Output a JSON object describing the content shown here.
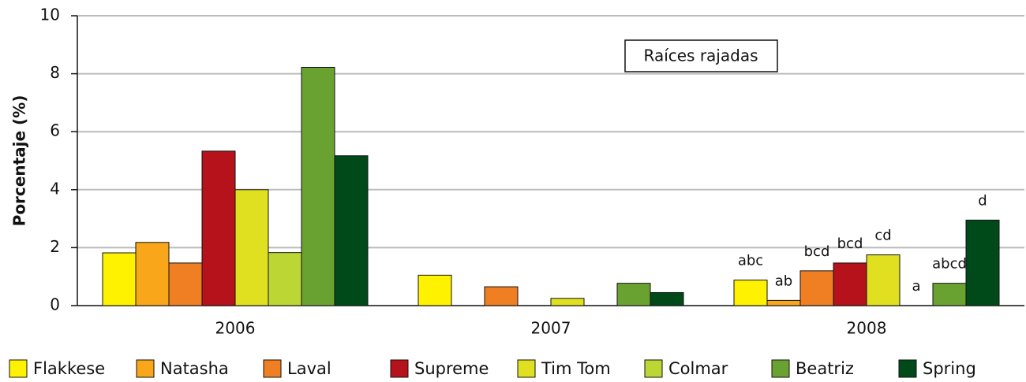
{
  "chart_data": {
    "type": "bar",
    "title": "Raíces rajadas",
    "y_label": "Porcentaje (%)",
    "categories": [
      "2006",
      "2007",
      "2008"
    ],
    "ylim": [
      0,
      10
    ],
    "yticks": [
      0,
      2,
      4,
      6,
      8,
      10
    ],
    "grid": true,
    "legend": "bottom",
    "series": [
      {
        "name": "Flakkese",
        "color": "#fff200",
        "values": [
          1.82,
          1.05,
          0.88
        ],
        "annotations": [
          null,
          null,
          "abc"
        ]
      },
      {
        "name": "Natasha",
        "color": "#f9a61a",
        "values": [
          2.18,
          null,
          0.18
        ],
        "annotations": [
          null,
          null,
          "ab"
        ]
      },
      {
        "name": "Laval",
        "color": "#f07f24",
        "values": [
          1.47,
          0.65,
          1.2
        ],
        "annotations": [
          null,
          null,
          "bcd"
        ]
      },
      {
        "name": "Supreme",
        "color": "#b5121b",
        "values": [
          5.33,
          null,
          1.47
        ],
        "annotations": [
          null,
          null,
          "bcd"
        ]
      },
      {
        "name": "Tim Tom",
        "color": "#e0e020",
        "values": [
          4.0,
          0.25,
          1.75
        ],
        "annotations": [
          null,
          null,
          "cd"
        ]
      },
      {
        "name": "Colmar",
        "color": "#bcd634",
        "values": [
          1.83,
          null,
          null
        ],
        "annotations": [
          null,
          null,
          "a"
        ]
      },
      {
        "name": "Beatriz",
        "color": "#6aa232",
        "values": [
          8.22,
          0.77,
          0.77
        ],
        "annotations": [
          null,
          null,
          "abcd"
        ]
      },
      {
        "name": "Spring",
        "color": "#004a1a",
        "values": [
          5.17,
          0.45,
          2.95
        ],
        "annotations": [
          null,
          null,
          "d"
        ]
      }
    ]
  }
}
